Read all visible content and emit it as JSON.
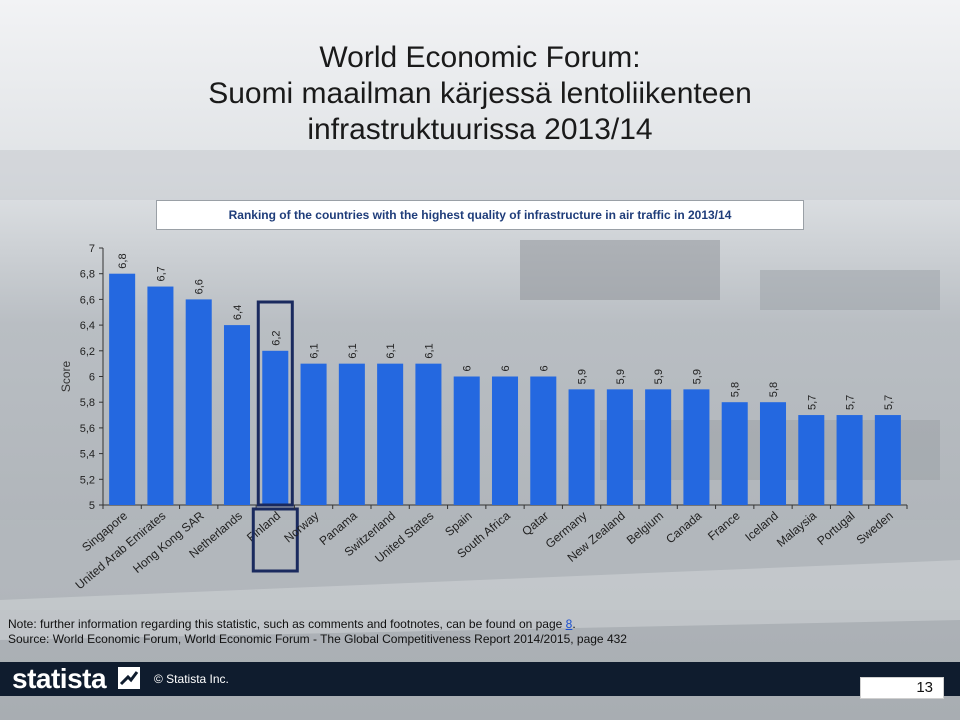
{
  "title_lines": [
    "World Economic Forum:",
    "Suomi maailman kärjessä lentoliikenteen",
    "infrastruktuurissa 2013/14"
  ],
  "chart_data": {
    "type": "bar",
    "subtitle": "Ranking of the countries with the highest quality of infrastructure in air traffic in 2013/14",
    "ylabel": "Score",
    "xlabel": "",
    "ylim": [
      5,
      7
    ],
    "yticks": [
      "5",
      "5,2",
      "5,4",
      "5,6",
      "5,8",
      "6",
      "6,2",
      "6,4",
      "6,6",
      "6,8",
      "7"
    ],
    "categories": [
      "Singapore",
      "United Arab Emirates",
      "Hong Kong SAR",
      "Netherlands",
      "Finland",
      "Norway",
      "Panama",
      "Switzerland",
      "United States",
      "Spain",
      "South Africa",
      "Qatar",
      "Germany",
      "New Zealand",
      "Belgium",
      "Canada",
      "France",
      "Iceland",
      "Malaysia",
      "Portugal",
      "Sweden"
    ],
    "values": [
      6.8,
      6.7,
      6.6,
      6.4,
      6.2,
      6.1,
      6.1,
      6.1,
      6.1,
      6,
      6,
      6,
      5.9,
      5.9,
      5.9,
      5.9,
      5.8,
      5.8,
      5.7,
      5.7,
      5.7
    ],
    "value_labels": [
      "6,8",
      "6,7",
      "6,6",
      "6,4",
      "6,2",
      "6,1",
      "6,1",
      "6,1",
      "6,1",
      "6",
      "6",
      "6",
      "5,9",
      "5,9",
      "5,9",
      "5,9",
      "5,8",
      "5,8",
      "5,7",
      "5,7",
      "5,7"
    ],
    "highlighted": "Finland",
    "bar_color": "#2468e0",
    "highlight_color": "#1a2a5e",
    "grid": false
  },
  "notes": {
    "note_prefix": "Note: further information regarding this statistic, such as comments and footnotes, can be found on page ",
    "note_page": "8",
    "note_suffix": ".",
    "source": "Source: World Economic Forum, World Economic Forum - The Global Competitiveness Report 2014/2015, page 432"
  },
  "footer": {
    "logo": "statista",
    "copyright": "© Statista Inc.",
    "page_number": "13",
    "background": "#0f1c2e"
  }
}
